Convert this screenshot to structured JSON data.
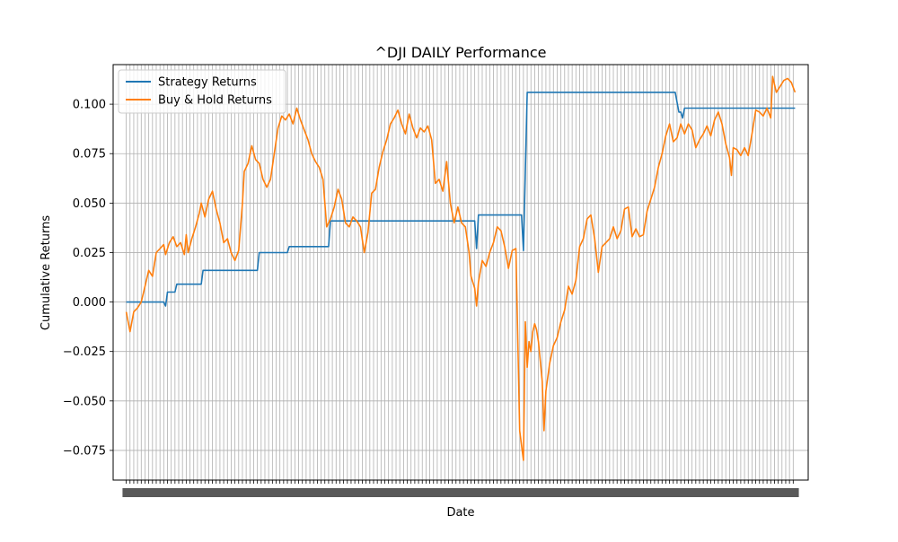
{
  "chart_data": {
    "type": "line",
    "title": "^DJI DAILY Performance",
    "xlabel": "Date",
    "ylabel": "Cumulative Returns",
    "ylim": [
      -0.09,
      0.12
    ],
    "yticks": [
      -0.075,
      -0.05,
      -0.025,
      0.0,
      0.025,
      0.05,
      0.075,
      0.1
    ],
    "ytick_labels": [
      "−0.075",
      "−0.050",
      "−0.025",
      "0.000",
      "0.025",
      "0.050",
      "0.075",
      "0.100"
    ],
    "x_range": [
      -7,
      364
    ],
    "grid": true,
    "legend": "upper-left",
    "colors": {
      "strategy": "#1f77b4",
      "buyhold": "#ff7f0e",
      "grid": "#b0b0b0"
    },
    "x_note": "x = trading-day index (0..357); the date tick labels are overlapping and illegible in the original",
    "series": [
      {
        "name": "Strategy Returns",
        "color": "#1f77b4",
        "points": [
          [
            0,
            0.0
          ],
          [
            20,
            0.0
          ],
          [
            21,
            -0.002
          ],
          [
            22,
            0.005
          ],
          [
            26,
            0.005
          ],
          [
            27,
            0.009
          ],
          [
            40,
            0.009
          ],
          [
            41,
            0.016
          ],
          [
            70,
            0.016
          ],
          [
            71,
            0.025
          ],
          [
            86,
            0.025
          ],
          [
            87,
            0.028
          ],
          [
            108,
            0.028
          ],
          [
            109,
            0.041
          ],
          [
            186,
            0.041
          ],
          [
            187,
            0.027
          ],
          [
            188,
            0.044
          ],
          [
            211,
            0.044
          ],
          [
            212,
            0.026
          ],
          [
            214,
            0.106
          ],
          [
            293,
            0.106
          ],
          [
            295,
            0.096
          ],
          [
            296,
            0.096
          ],
          [
            297,
            0.093
          ],
          [
            298,
            0.098
          ],
          [
            357,
            0.098
          ]
        ]
      },
      {
        "name": "Buy & Hold Returns",
        "color": "#ff7f0e",
        "points": [
          [
            0,
            -0.005
          ],
          [
            2,
            -0.015
          ],
          [
            4,
            -0.005
          ],
          [
            6,
            -0.003
          ],
          [
            8,
            0.0
          ],
          [
            10,
            0.008
          ],
          [
            12,
            0.016
          ],
          [
            14,
            0.013
          ],
          [
            16,
            0.025
          ],
          [
            18,
            0.027
          ],
          [
            20,
            0.029
          ],
          [
            21,
            0.024
          ],
          [
            23,
            0.03
          ],
          [
            25,
            0.033
          ],
          [
            27,
            0.028
          ],
          [
            29,
            0.03
          ],
          [
            31,
            0.024
          ],
          [
            32,
            0.034
          ],
          [
            33,
            0.025
          ],
          [
            35,
            0.032
          ],
          [
            37,
            0.038
          ],
          [
            39,
            0.045
          ],
          [
            40,
            0.05
          ],
          [
            42,
            0.043
          ],
          [
            44,
            0.052
          ],
          [
            46,
            0.056
          ],
          [
            48,
            0.047
          ],
          [
            50,
            0.04
          ],
          [
            52,
            0.03
          ],
          [
            54,
            0.032
          ],
          [
            56,
            0.025
          ],
          [
            58,
            0.021
          ],
          [
            60,
            0.026
          ],
          [
            62,
            0.05
          ],
          [
            63,
            0.066
          ],
          [
            65,
            0.07
          ],
          [
            67,
            0.079
          ],
          [
            69,
            0.072
          ],
          [
            71,
            0.07
          ],
          [
            73,
            0.062
          ],
          [
            75,
            0.058
          ],
          [
            77,
            0.062
          ],
          [
            79,
            0.075
          ],
          [
            81,
            0.088
          ],
          [
            83,
            0.094
          ],
          [
            85,
            0.092
          ],
          [
            87,
            0.095
          ],
          [
            89,
            0.09
          ],
          [
            91,
            0.098
          ],
          [
            93,
            0.092
          ],
          [
            95,
            0.087
          ],
          [
            97,
            0.082
          ],
          [
            99,
            0.075
          ],
          [
            101,
            0.071
          ],
          [
            103,
            0.068
          ],
          [
            105,
            0.062
          ],
          [
            107,
            0.038
          ],
          [
            109,
            0.042
          ],
          [
            111,
            0.048
          ],
          [
            113,
            0.057
          ],
          [
            115,
            0.052
          ],
          [
            117,
            0.04
          ],
          [
            119,
            0.038
          ],
          [
            121,
            0.043
          ],
          [
            123,
            0.041
          ],
          [
            125,
            0.038
          ],
          [
            127,
            0.025
          ],
          [
            129,
            0.035
          ],
          [
            131,
            0.055
          ],
          [
            133,
            0.057
          ],
          [
            135,
            0.068
          ],
          [
            137,
            0.076
          ],
          [
            139,
            0.082
          ],
          [
            141,
            0.09
          ],
          [
            143,
            0.093
          ],
          [
            145,
            0.097
          ],
          [
            147,
            0.09
          ],
          [
            149,
            0.085
          ],
          [
            151,
            0.095
          ],
          [
            153,
            0.088
          ],
          [
            155,
            0.083
          ],
          [
            157,
            0.088
          ],
          [
            159,
            0.086
          ],
          [
            161,
            0.089
          ],
          [
            163,
            0.082
          ],
          [
            165,
            0.06
          ],
          [
            167,
            0.062
          ],
          [
            169,
            0.056
          ],
          [
            171,
            0.071
          ],
          [
            173,
            0.05
          ],
          [
            175,
            0.04
          ],
          [
            177,
            0.048
          ],
          [
            179,
            0.04
          ],
          [
            181,
            0.038
          ],
          [
            183,
            0.025
          ],
          [
            184,
            0.013
          ],
          [
            186,
            0.007
          ],
          [
            187,
            -0.002
          ],
          [
            188,
            0.01
          ],
          [
            190,
            0.021
          ],
          [
            192,
            0.018
          ],
          [
            194,
            0.025
          ],
          [
            196,
            0.03
          ],
          [
            198,
            0.038
          ],
          [
            200,
            0.036
          ],
          [
            202,
            0.028
          ],
          [
            204,
            0.017
          ],
          [
            206,
            0.026
          ],
          [
            208,
            0.027
          ],
          [
            210,
            -0.065
          ],
          [
            212,
            -0.08
          ],
          [
            213,
            -0.01
          ],
          [
            214,
            -0.033
          ],
          [
            215,
            -0.02
          ],
          [
            216,
            -0.025
          ],
          [
            217,
            -0.015
          ],
          [
            218,
            -0.011
          ],
          [
            219,
            -0.014
          ],
          [
            220,
            -0.02
          ],
          [
            221,
            -0.03
          ],
          [
            222,
            -0.04
          ],
          [
            223,
            -0.065
          ],
          [
            224,
            -0.045
          ],
          [
            226,
            -0.031
          ],
          [
            228,
            -0.022
          ],
          [
            230,
            -0.018
          ],
          [
            232,
            -0.01
          ],
          [
            234,
            -0.004
          ],
          [
            236,
            0.008
          ],
          [
            238,
            0.004
          ],
          [
            240,
            0.011
          ],
          [
            242,
            0.028
          ],
          [
            244,
            0.032
          ],
          [
            246,
            0.042
          ],
          [
            248,
            0.044
          ],
          [
            250,
            0.032
          ],
          [
            252,
            0.015
          ],
          [
            254,
            0.028
          ],
          [
            256,
            0.03
          ],
          [
            258,
            0.032
          ],
          [
            260,
            0.038
          ],
          [
            262,
            0.032
          ],
          [
            264,
            0.036
          ],
          [
            266,
            0.047
          ],
          [
            268,
            0.048
          ],
          [
            270,
            0.033
          ],
          [
            272,
            0.037
          ],
          [
            274,
            0.033
          ],
          [
            276,
            0.034
          ],
          [
            278,
            0.046
          ],
          [
            280,
            0.052
          ],
          [
            282,
            0.058
          ],
          [
            284,
            0.068
          ],
          [
            286,
            0.075
          ],
          [
            288,
            0.084
          ],
          [
            290,
            0.09
          ],
          [
            292,
            0.081
          ],
          [
            294,
            0.083
          ],
          [
            296,
            0.09
          ],
          [
            298,
            0.085
          ],
          [
            300,
            0.09
          ],
          [
            302,
            0.087
          ],
          [
            304,
            0.078
          ],
          [
            306,
            0.082
          ],
          [
            308,
            0.085
          ],
          [
            310,
            0.089
          ],
          [
            312,
            0.084
          ],
          [
            314,
            0.092
          ],
          [
            316,
            0.096
          ],
          [
            318,
            0.09
          ],
          [
            320,
            0.08
          ],
          [
            322,
            0.073
          ],
          [
            323,
            0.064
          ],
          [
            324,
            0.078
          ],
          [
            326,
            0.077
          ],
          [
            328,
            0.074
          ],
          [
            330,
            0.078
          ],
          [
            332,
            0.074
          ],
          [
            334,
            0.085
          ],
          [
            336,
            0.097
          ],
          [
            338,
            0.096
          ],
          [
            340,
            0.094
          ],
          [
            342,
            0.098
          ],
          [
            344,
            0.093
          ],
          [
            345,
            0.114
          ],
          [
            347,
            0.106
          ],
          [
            349,
            0.109
          ],
          [
            351,
            0.112
          ],
          [
            353,
            0.113
          ],
          [
            355,
            0.111
          ],
          [
            357,
            0.106
          ]
        ]
      }
    ]
  }
}
